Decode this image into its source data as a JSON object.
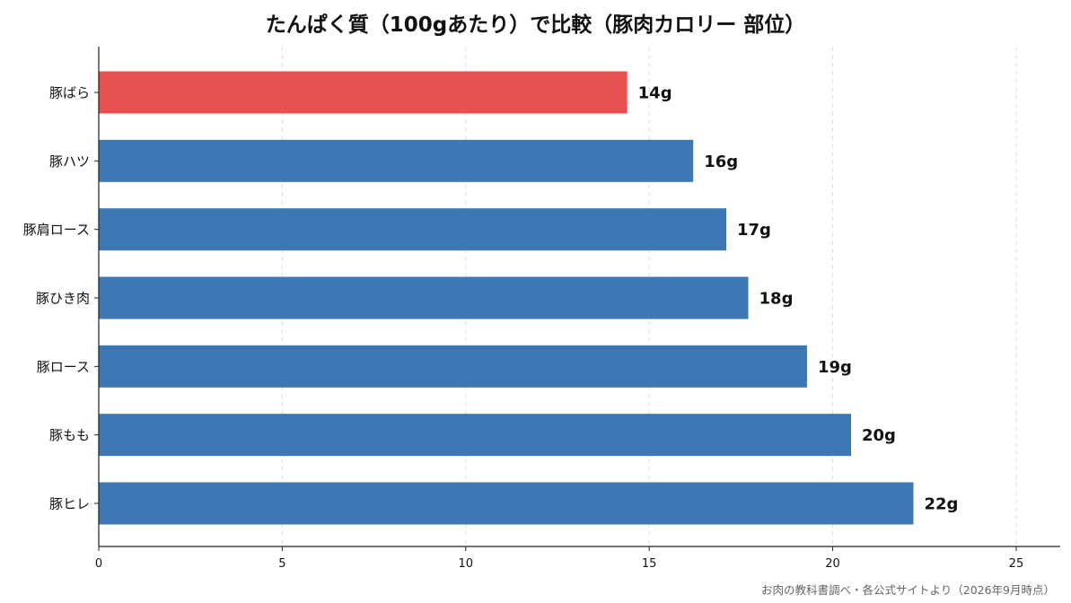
{
  "chart_data": {
    "type": "bar",
    "orientation": "horizontal",
    "title": "たんぱく質（100gあたり）で比較（豚肉カロリー 部位）",
    "categories": [
      "豚ばら",
      "豚ハツ",
      "豚肩ロース",
      "豚ひき肉",
      "豚ロース",
      "豚もも",
      "豚ヒレ"
    ],
    "values": [
      14.4,
      16.2,
      17.1,
      17.7,
      19.3,
      20.5,
      22.2
    ],
    "value_labels": [
      "14g",
      "16g",
      "17g",
      "18g",
      "19g",
      "20g",
      "22g"
    ],
    "highlight_index": 0,
    "colors": {
      "highlight": "#e65050",
      "default": "#3d78b4",
      "grid": "#dddddd",
      "axis": "#222222"
    },
    "xlim": [
      0,
      26.2
    ],
    "xticks": [
      0,
      5,
      10,
      15,
      20,
      25
    ],
    "xlabel": "",
    "ylabel": "",
    "grid": "vertical dashed",
    "legend": "none"
  },
  "source_note": "お肉の教科書調べ・各公式サイトより（2026年9月時点）"
}
